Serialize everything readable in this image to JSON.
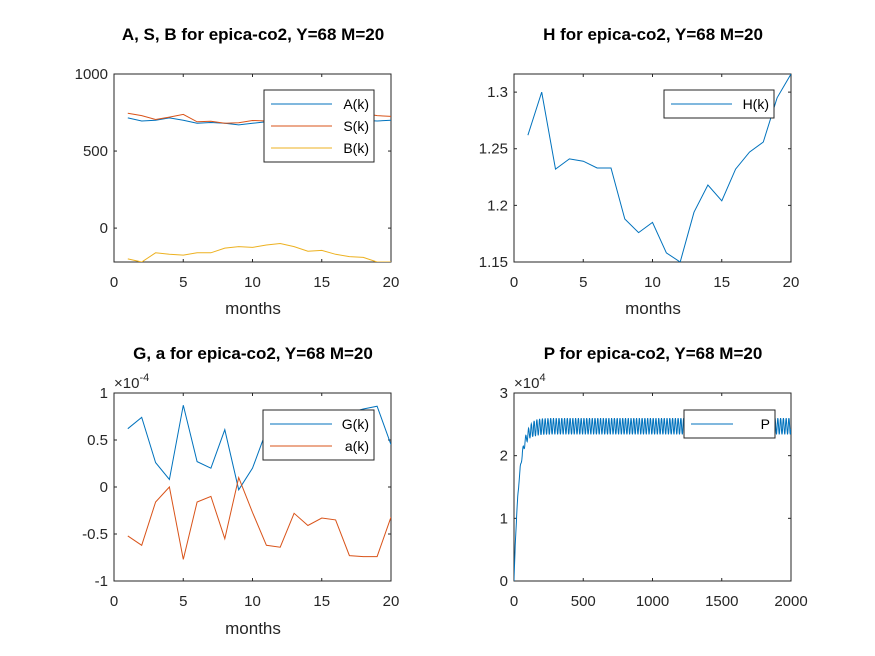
{
  "colors": {
    "c1": "#0072BD",
    "c2": "#D95319",
    "c3": "#EDB120",
    "axis": "#262626"
  },
  "chart_data": [
    {
      "type": "line",
      "title": "A, S, B for epica-co2, Y=68 M=20",
      "xlabel": "months",
      "ylabel": "",
      "xlim": [
        0,
        20
      ],
      "ylim": [
        -220,
        1000
      ],
      "xticks": [
        0,
        5,
        10,
        15,
        20
      ],
      "yticks": [
        0,
        500,
        1000
      ],
      "x": [
        1,
        2,
        3,
        4,
        5,
        6,
        7,
        8,
        9,
        10,
        11,
        12,
        13,
        14,
        15,
        16,
        17,
        18,
        19,
        20
      ],
      "legend_position": "top-right",
      "series": [
        {
          "name": "A(k)",
          "color": "#0072BD",
          "values": [
            715,
            695,
            700,
            715,
            700,
            680,
            685,
            680,
            670,
            680,
            690,
            705,
            715,
            705,
            680,
            680,
            690,
            700,
            695,
            700
          ]
        },
        {
          "name": "S(k)",
          "color": "#D95319",
          "values": [
            745,
            730,
            705,
            720,
            738,
            690,
            693,
            680,
            683,
            698,
            695,
            710,
            705,
            700,
            697,
            695,
            695,
            745,
            730,
            725
          ]
        },
        {
          "name": "B(k)",
          "color": "#EDB120",
          "values": [
            -200,
            -220,
            -160,
            -170,
            -175,
            -160,
            -160,
            -130,
            -120,
            -125,
            -110,
            -100,
            -120,
            -150,
            -145,
            -170,
            -185,
            -190,
            -220,
            -220
          ]
        }
      ]
    },
    {
      "type": "line",
      "title": "H for epica-co2, Y=68 M=20",
      "xlabel": "months",
      "ylabel": "",
      "xlim": [
        0,
        20
      ],
      "ylim": [
        1.15,
        1.316
      ],
      "xticks": [
        0,
        5,
        10,
        15,
        20
      ],
      "yticks": [
        1.15,
        1.2,
        1.25,
        1.3
      ],
      "ytick_labels": [
        "1.15",
        "1.2",
        "1.25",
        "1.3"
      ],
      "x": [
        1,
        2,
        3,
        4,
        5,
        6,
        7,
        8,
        9,
        10,
        11,
        12,
        13,
        14,
        15,
        16,
        17,
        18,
        19,
        20
      ],
      "legend_position": "top-right",
      "series": [
        {
          "name": "H(k)",
          "color": "#0072BD",
          "values": [
            1.262,
            1.3,
            1.232,
            1.241,
            1.239,
            1.233,
            1.233,
            1.188,
            1.176,
            1.185,
            1.158,
            1.15,
            1.194,
            1.218,
            1.204,
            1.232,
            1.247,
            1.256,
            1.295,
            1.316
          ]
        }
      ]
    },
    {
      "type": "line",
      "title": "G, a for epica-co2, Y=68 M=20",
      "xlabel": "months",
      "ylabel": "",
      "xlim": [
        0,
        20
      ],
      "ylim": [
        -1,
        1
      ],
      "xticks": [
        0,
        5,
        10,
        15,
        20
      ],
      "yticks": [
        -1,
        -0.5,
        0,
        0.5,
        1
      ],
      "ytick_labels": [
        "-1",
        "-0.5",
        "0",
        "0.5",
        "1"
      ],
      "exponent_base": "×10",
      "exponent_power": "-4",
      "x": [
        1,
        2,
        3,
        4,
        5,
        6,
        7,
        8,
        9,
        10,
        11,
        12,
        13,
        14,
        15,
        16,
        17,
        18,
        19,
        20
      ],
      "legend_position": "top-right",
      "series": [
        {
          "name": "G(k)",
          "color": "#0072BD",
          "values": [
            0.62,
            0.74,
            0.26,
            0.08,
            0.87,
            0.27,
            0.2,
            0.61,
            -0.03,
            0.2,
            0.6,
            0.62,
            0.63,
            0.65,
            0.72,
            0.76,
            0.79,
            0.83,
            0.86,
            0.45
          ]
        },
        {
          "name": "a(k)",
          "color": "#D95319",
          "values": [
            -0.52,
            -0.62,
            -0.16,
            0.0,
            -0.77,
            -0.16,
            -0.1,
            -0.55,
            0.1,
            -0.27,
            -0.62,
            -0.64,
            -0.28,
            -0.41,
            -0.33,
            -0.35,
            -0.73,
            -0.74,
            -0.74,
            -0.32
          ]
        }
      ]
    },
    {
      "type": "line",
      "title": "P for epica-co2, Y=68 M=20",
      "xlabel": "",
      "ylabel": "",
      "xlim": [
        0,
        2000
      ],
      "ylim": [
        0,
        3
      ],
      "xticks": [
        0,
        500,
        1000,
        1500,
        2000
      ],
      "yticks": [
        0,
        1,
        2,
        3
      ],
      "exponent_base": "×10",
      "exponent_power": "4",
      "legend_position": "top-right",
      "series": [
        {
          "name": "P",
          "color": "#0072BD",
          "description_values": {
            "start": 0,
            "plateau_mean": 2.47,
            "oscillation_amplitude": 0.13,
            "oscillation_period": 20
          }
        }
      ]
    }
  ]
}
